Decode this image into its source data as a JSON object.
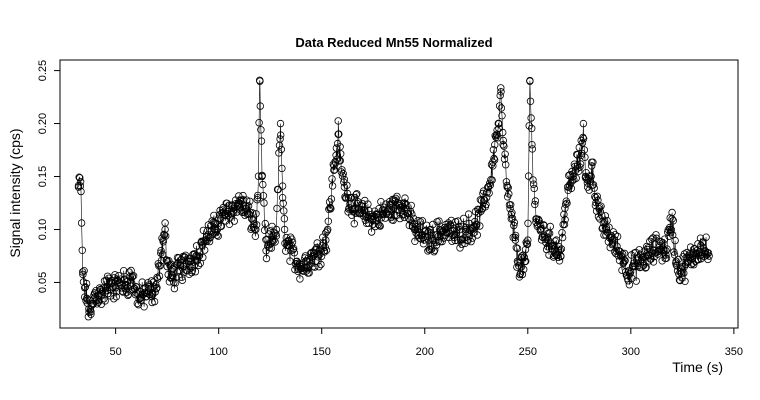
{
  "chart_data": {
    "type": "line",
    "title": "Data Reduced Mn55 Normalized",
    "xlabel": "Time (s)",
    "ylabel": "Signal intensity (cps)",
    "xlim": [
      23,
      352
    ],
    "ylim": [
      0.007,
      0.26
    ],
    "xticks": [
      50,
      100,
      150,
      200,
      250,
      300,
      350
    ],
    "yticks": [
      0.05,
      0.1,
      0.15,
      0.2,
      0.25
    ],
    "ytick_labels": [
      "0.05",
      "0.10",
      "0.15",
      "0.20",
      "0.25"
    ],
    "x_range": [
      32,
      338
    ],
    "point_style": "open-circle",
    "series": [
      {
        "x": [
          32,
          33,
          34,
          35,
          36,
          37,
          38,
          40,
          42,
          45,
          48,
          50,
          52,
          55,
          58,
          60,
          62,
          65,
          68,
          70,
          72,
          73,
          74,
          75,
          77,
          80,
          83,
          86,
          89,
          92,
          95,
          98,
          101,
          104,
          107,
          110,
          113,
          116,
          118,
          119,
          120,
          121,
          123,
          126,
          128,
          130,
          131,
          132,
          133,
          135,
          138,
          140,
          143,
          146,
          149,
          152,
          154,
          156,
          157,
          158,
          159,
          161,
          163,
          166,
          170,
          175,
          180,
          185,
          190,
          195,
          199,
          202,
          206,
          210,
          215,
          220,
          225,
          228,
          231,
          233,
          234,
          235,
          236,
          237,
          238,
          240,
          242,
          244,
          245,
          247,
          249,
          250,
          251,
          252,
          254,
          256,
          260,
          263,
          265,
          266,
          268,
          270,
          272,
          274,
          276,
          277,
          278,
          279,
          281,
          283,
          285,
          288,
          291,
          294,
          297,
          299,
          302,
          305,
          308,
          311,
          314,
          317,
          319,
          320,
          322,
          324,
          326,
          328,
          330,
          332,
          334,
          336,
          338
        ],
        "y": [
          0.14,
          0.145,
          0.06,
          0.045,
          0.035,
          0.025,
          0.02,
          0.04,
          0.038,
          0.042,
          0.05,
          0.045,
          0.05,
          0.048,
          0.055,
          0.04,
          0.035,
          0.04,
          0.04,
          0.045,
          0.08,
          0.09,
          0.1,
          0.065,
          0.055,
          0.06,
          0.065,
          0.07,
          0.075,
          0.085,
          0.095,
          0.1,
          0.11,
          0.115,
          0.12,
          0.125,
          0.12,
          0.11,
          0.1,
          0.13,
          0.24,
          0.15,
          0.08,
          0.09,
          0.1,
          0.2,
          0.13,
          0.1,
          0.085,
          0.08,
          0.07,
          0.065,
          0.07,
          0.075,
          0.08,
          0.09,
          0.12,
          0.16,
          0.17,
          0.19,
          0.165,
          0.14,
          0.13,
          0.12,
          0.115,
          0.11,
          0.115,
          0.12,
          0.125,
          0.1,
          0.095,
          0.09,
          0.095,
          0.1,
          0.095,
          0.1,
          0.105,
          0.12,
          0.14,
          0.16,
          0.18,
          0.19,
          0.2,
          0.23,
          0.18,
          0.14,
          0.11,
          0.09,
          0.07,
          0.065,
          0.07,
          0.09,
          0.24,
          0.18,
          0.11,
          0.1,
          0.09,
          0.085,
          0.08,
          0.075,
          0.12,
          0.14,
          0.15,
          0.16,
          0.17,
          0.2,
          0.15,
          0.14,
          0.16,
          0.13,
          0.11,
          0.1,
          0.09,
          0.08,
          0.07,
          0.06,
          0.065,
          0.07,
          0.075,
          0.08,
          0.085,
          0.08,
          0.1,
          0.11,
          0.07,
          0.06,
          0.065,
          0.07,
          0.075,
          0.08,
          0.085,
          0.08,
          0.075
        ]
      }
    ]
  }
}
